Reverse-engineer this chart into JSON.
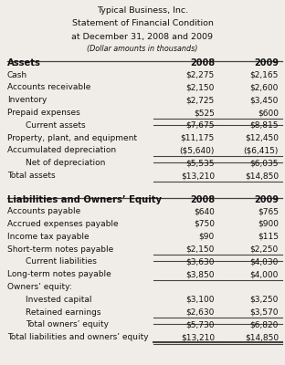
{
  "title_lines": [
    "Typical Business, Inc.",
    "Statement of Financial Condition",
    "at December 31, 2008 and 2009",
    "(Dollar amounts in thousands)"
  ],
  "assets_header": "Assets",
  "liab_header": "Liabilities and Owners’ Equity",
  "col2008": "2008",
  "col2009": "2009",
  "assets_rows": [
    {
      "label": "Cash",
      "ind": 0,
      "v2008": "$2,275",
      "v2009": "$2,165",
      "line_above_cols": false,
      "line_below_cols": false,
      "bold": false
    },
    {
      "label": "Accounts receivable",
      "ind": 0,
      "v2008": "$2,150",
      "v2009": "$2,600",
      "line_above_cols": false,
      "line_below_cols": false,
      "bold": false
    },
    {
      "label": "Inventory",
      "ind": 0,
      "v2008": "$2,725",
      "v2009": "$3,450",
      "line_above_cols": false,
      "line_below_cols": false,
      "bold": false
    },
    {
      "label": "Prepaid expenses",
      "ind": 0,
      "v2008": "$525",
      "v2009": "$600",
      "line_above_cols": false,
      "line_below_cols": true,
      "bold": false
    },
    {
      "label": "Current assets",
      "ind": 1,
      "v2008": "$7,675",
      "v2009": "$8,815",
      "line_above_cols": false,
      "line_below_cols": false,
      "bold": false
    },
    {
      "label": "Property, plant, and equipment",
      "ind": 0,
      "v2008": "$11,175",
      "v2009": "$12,450",
      "line_above_cols": true,
      "line_below_cols": false,
      "bold": false
    },
    {
      "label": "Accumulated depreciation",
      "ind": 0,
      "v2008": "($5,640)",
      "v2009": "($6,415)",
      "line_above_cols": false,
      "line_below_cols": true,
      "bold": false
    },
    {
      "label": "Net of depreciation",
      "ind": 1,
      "v2008": "$5,535",
      "v2009": "$6,035",
      "line_above_cols": false,
      "line_below_cols": false,
      "bold": false
    },
    {
      "label": "Total assets",
      "ind": 0,
      "v2008": "$13,210",
      "v2009": "$14,850",
      "line_above_cols": true,
      "line_below_cols": true,
      "bold": false
    }
  ],
  "liab_rows": [
    {
      "label": "Accounts payable",
      "ind": 0,
      "v2008": "$640",
      "v2009": "$765",
      "line_above_cols": false,
      "line_below_cols": false,
      "bold": false
    },
    {
      "label": "Accrued expenses payable",
      "ind": 0,
      "v2008": "$750",
      "v2009": "$900",
      "line_above_cols": false,
      "line_below_cols": false,
      "bold": false
    },
    {
      "label": "Income tax payable",
      "ind": 0,
      "v2008": "$90",
      "v2009": "$115",
      "line_above_cols": false,
      "line_below_cols": false,
      "bold": false
    },
    {
      "label": "Short-term notes payable",
      "ind": 0,
      "v2008": "$2,150",
      "v2009": "$2,250",
      "line_above_cols": false,
      "line_below_cols": true,
      "bold": false
    },
    {
      "label": "Current liabilities",
      "ind": 1,
      "v2008": "$3,630",
      "v2009": "$4,030",
      "line_above_cols": false,
      "line_below_cols": false,
      "bold": false
    },
    {
      "label": "Long-term notes payable",
      "ind": 0,
      "v2008": "$3,850",
      "v2009": "$4,000",
      "line_above_cols": true,
      "line_below_cols": true,
      "bold": false
    },
    {
      "label": "Owners’ equity:",
      "ind": 0,
      "v2008": "",
      "v2009": "",
      "line_above_cols": false,
      "line_below_cols": false,
      "bold": false
    },
    {
      "label": "Invested capital",
      "ind": 1,
      "v2008": "$3,100",
      "v2009": "$3,250",
      "line_above_cols": false,
      "line_below_cols": false,
      "bold": false
    },
    {
      "label": "Retained earnings",
      "ind": 1,
      "v2008": "$2,630",
      "v2009": "$3,570",
      "line_above_cols": false,
      "line_below_cols": true,
      "bold": false
    },
    {
      "label": "Total owners’ equity",
      "ind": 1,
      "v2008": "$5,730",
      "v2009": "$6,820",
      "line_above_cols": false,
      "line_below_cols": false,
      "bold": false
    },
    {
      "label": "Total liabilities and owners’ equity",
      "ind": 0,
      "v2008": "$13,210",
      "v2009": "$14,850",
      "line_above_cols": true,
      "line_below_cols": true,
      "bold": false
    }
  ],
  "bg_color": "#f0ede8",
  "text_color": "#111111",
  "line_color": "#444444"
}
